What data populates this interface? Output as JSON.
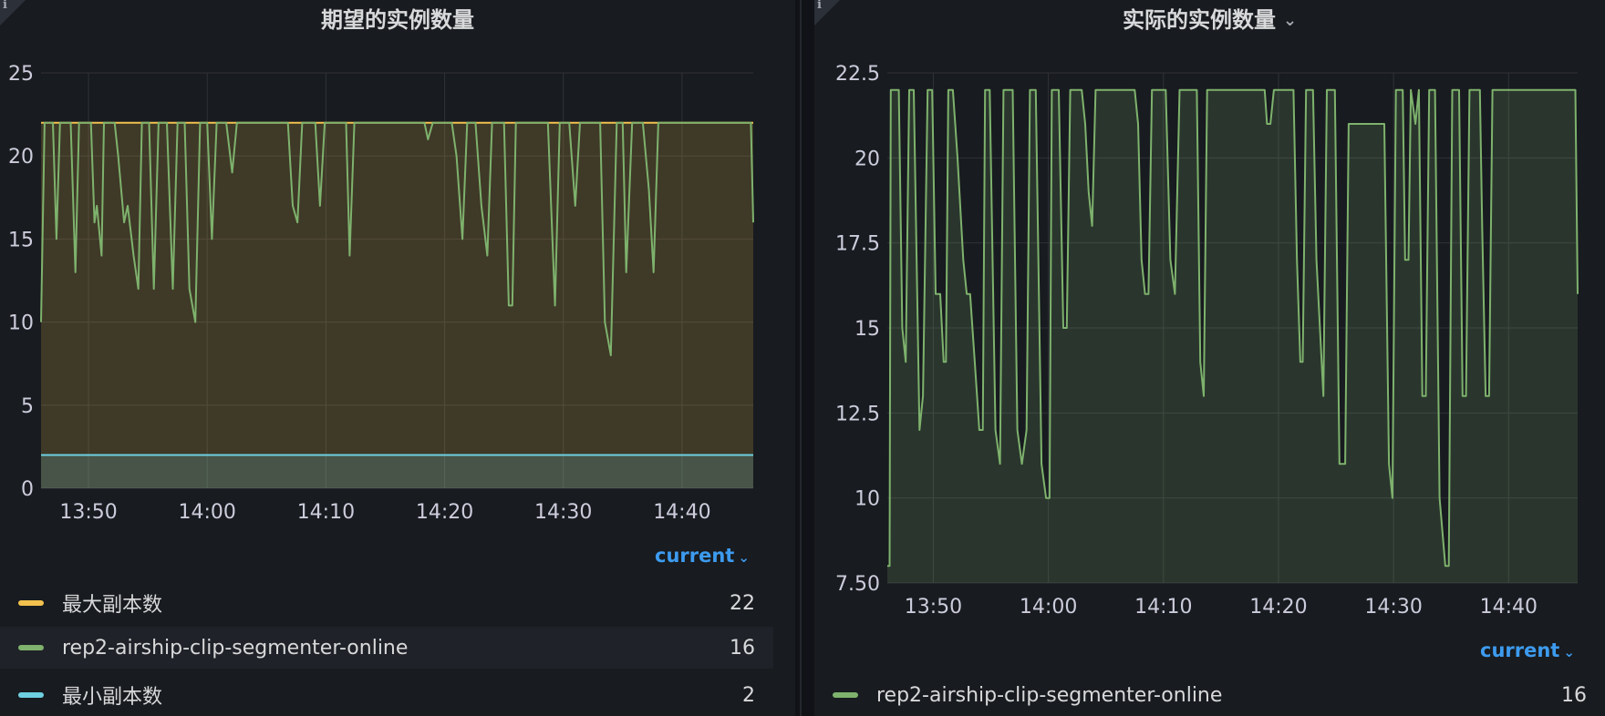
{
  "panels": [
    {
      "title": "期望的实例数量",
      "has_menu": false,
      "legend_header": "current",
      "legend": [
        {
          "name": "最大副本数",
          "value": "22",
          "color": "#f2c14e"
        },
        {
          "name": "rep2-airship-clip-segmenter-online",
          "value": "16",
          "color": "#7eb26d"
        },
        {
          "name": "最小副本数",
          "value": "2",
          "color": "#6ed0e0"
        }
      ]
    },
    {
      "title": "实际的实例数量",
      "has_menu": true,
      "legend_header": "current",
      "legend": [
        {
          "name": "rep2-airship-clip-segmenter-online",
          "value": "16",
          "color": "#7eb26d"
        }
      ]
    }
  ],
  "chart_data": [
    {
      "type": "line",
      "title": "期望的实例数量",
      "x_ticks": [
        "13:50",
        "14:00",
        "14:10",
        "14:20",
        "14:30",
        "14:40"
      ],
      "x_range": [
        "13:46",
        "14:46"
      ],
      "y_ticks": [
        "0",
        "5",
        "10",
        "15",
        "20",
        "25"
      ],
      "ylim": [
        0,
        25
      ],
      "grid": true,
      "legend_position": "bottom",
      "series": [
        {
          "name": "最大副本数",
          "color": "#f2c14e",
          "fill": true,
          "points": [
            [
              0,
              22
            ],
            [
              60,
              22
            ]
          ]
        },
        {
          "name": "最小副本数",
          "color": "#6ed0e0",
          "fill": true,
          "points": [
            [
              0,
              2
            ],
            [
              60,
              2
            ]
          ]
        },
        {
          "name": "rep2-airship-clip-segmenter-online",
          "color": "#7eb26d",
          "fill": false,
          "points": [
            [
              0,
              10
            ],
            [
              0.3,
              22
            ],
            [
              1,
              22
            ],
            [
              1.3,
              15
            ],
            [
              1.6,
              22
            ],
            [
              2.5,
              22
            ],
            [
              2.9,
              13
            ],
            [
              3.2,
              22
            ],
            [
              4.2,
              22
            ],
            [
              4.5,
              16
            ],
            [
              4.7,
              17
            ],
            [
              5.1,
              14
            ],
            [
              5.3,
              22
            ],
            [
              6.2,
              22
            ],
            [
              6.5,
              20
            ],
            [
              7,
              16
            ],
            [
              7.3,
              17
            ],
            [
              7.8,
              14
            ],
            [
              8.2,
              12
            ],
            [
              8.5,
              22
            ],
            [
              9.1,
              22
            ],
            [
              9.5,
              12
            ],
            [
              9.9,
              22
            ],
            [
              10.6,
              22
            ],
            [
              11.1,
              12
            ],
            [
              11.5,
              22
            ],
            [
              12.1,
              22
            ],
            [
              12.5,
              12
            ],
            [
              13,
              10
            ],
            [
              13.4,
              22
            ],
            [
              14,
              22
            ],
            [
              14.4,
              15
            ],
            [
              14.8,
              22
            ],
            [
              15.6,
              22
            ],
            [
              16.1,
              19
            ],
            [
              16.5,
              22
            ],
            [
              20.8,
              22
            ],
            [
              21.2,
              17
            ],
            [
              21.6,
              16
            ],
            [
              22,
              22
            ],
            [
              23.1,
              22
            ],
            [
              23.5,
              17
            ],
            [
              23.9,
              22
            ],
            [
              25.7,
              22
            ],
            [
              26,
              14
            ],
            [
              26.4,
              22
            ],
            [
              32.3,
              22
            ],
            [
              32.6,
              21
            ],
            [
              33,
              22
            ],
            [
              34.6,
              22
            ],
            [
              35,
              20
            ],
            [
              35.5,
              15
            ],
            [
              35.9,
              22
            ],
            [
              36.6,
              22
            ],
            [
              37.1,
              17
            ],
            [
              37.6,
              14
            ],
            [
              38,
              22
            ],
            [
              39,
              22
            ],
            [
              39.4,
              11
            ],
            [
              39.7,
              11
            ],
            [
              40,
              22
            ],
            [
              42.7,
              22
            ],
            [
              43.3,
              11
            ],
            [
              43.7,
              22
            ],
            [
              44.5,
              22
            ],
            [
              45,
              17
            ],
            [
              45.4,
              22
            ],
            [
              47.1,
              22
            ],
            [
              47.5,
              10
            ],
            [
              48,
              8
            ],
            [
              48.5,
              22
            ],
            [
              49,
              22
            ],
            [
              49.3,
              13
            ],
            [
              49.8,
              22
            ],
            [
              50.7,
              22
            ],
            [
              51.2,
              18
            ],
            [
              51.6,
              13
            ],
            [
              52,
              22
            ],
            [
              59.8,
              22
            ],
            [
              60,
              16
            ]
          ]
        }
      ]
    },
    {
      "type": "line",
      "title": "实际的实例数量",
      "x_ticks": [
        "13:50",
        "14:00",
        "14:10",
        "14:20",
        "14:30",
        "14:40"
      ],
      "x_range": [
        "13:46",
        "14:46"
      ],
      "y_ticks": [
        "7.50",
        "10",
        "12.5",
        "15",
        "17.5",
        "20",
        "22.5"
      ],
      "ylim": [
        7.5,
        22.5
      ],
      "grid": true,
      "legend_position": "bottom",
      "series": [
        {
          "name": "rep2-airship-clip-segmenter-online",
          "color": "#7eb26d",
          "fill": true,
          "points": [
            [
              0,
              8
            ],
            [
              0.2,
              8
            ],
            [
              0.3,
              22
            ],
            [
              1,
              22
            ],
            [
              1.3,
              15
            ],
            [
              1.6,
              14
            ],
            [
              1.9,
              22
            ],
            [
              2.3,
              22
            ],
            [
              2.8,
              12
            ],
            [
              3.1,
              13
            ],
            [
              3.5,
              22
            ],
            [
              3.9,
              22
            ],
            [
              4.2,
              16
            ],
            [
              4.6,
              16
            ],
            [
              4.9,
              14
            ],
            [
              5.1,
              14
            ],
            [
              5.3,
              22
            ],
            [
              5.7,
              22
            ],
            [
              6.1,
              20
            ],
            [
              6.6,
              17
            ],
            [
              6.9,
              16
            ],
            [
              7.2,
              16
            ],
            [
              7.6,
              14
            ],
            [
              8,
              12
            ],
            [
              8.3,
              12
            ],
            [
              8.5,
              22
            ],
            [
              8.9,
              22
            ],
            [
              9.4,
              12
            ],
            [
              9.8,
              11
            ],
            [
              10.1,
              22
            ],
            [
              10.9,
              22
            ],
            [
              11.3,
              12
            ],
            [
              11.7,
              11
            ],
            [
              12.1,
              12
            ],
            [
              12.4,
              22
            ],
            [
              12.9,
              22
            ],
            [
              13.4,
              11
            ],
            [
              13.8,
              10
            ],
            [
              14.1,
              10
            ],
            [
              14.3,
              22
            ],
            [
              14.9,
              22
            ],
            [
              15.3,
              15
            ],
            [
              15.6,
              15
            ],
            [
              15.9,
              22
            ],
            [
              16.9,
              22
            ],
            [
              17.2,
              21
            ],
            [
              17.5,
              19
            ],
            [
              17.8,
              18
            ],
            [
              18.1,
              22
            ],
            [
              21.5,
              22
            ],
            [
              21.8,
              21
            ],
            [
              22.1,
              17
            ],
            [
              22.4,
              16
            ],
            [
              22.7,
              16
            ],
            [
              23,
              22
            ],
            [
              24.2,
              22
            ],
            [
              24.6,
              17
            ],
            [
              25,
              16
            ],
            [
              25.4,
              22
            ],
            [
              26.9,
              22
            ],
            [
              27.2,
              14
            ],
            [
              27.5,
              13
            ],
            [
              27.8,
              22
            ],
            [
              32.8,
              22
            ],
            [
              33,
              21
            ],
            [
              33.3,
              21
            ],
            [
              33.6,
              22
            ],
            [
              35.3,
              22
            ],
            [
              35.6,
              17
            ],
            [
              35.9,
              14
            ],
            [
              36.1,
              14
            ],
            [
              36.4,
              22
            ],
            [
              37,
              22
            ],
            [
              37.3,
              17
            ],
            [
              37.6,
              15
            ],
            [
              37.9,
              13
            ],
            [
              38.2,
              22
            ],
            [
              38.9,
              22
            ],
            [
              39.3,
              11
            ],
            [
              39.8,
              11
            ],
            [
              40.1,
              21
            ],
            [
              43.2,
              21
            ],
            [
              43.6,
              11
            ],
            [
              43.9,
              10
            ],
            [
              44.2,
              22
            ],
            [
              44.8,
              22
            ],
            [
              45,
              17
            ],
            [
              45.3,
              17
            ],
            [
              45.5,
              22
            ],
            [
              45.9,
              21
            ],
            [
              46.2,
              22
            ],
            [
              46.5,
              13
            ],
            [
              46.8,
              13
            ],
            [
              47.1,
              22
            ],
            [
              47.6,
              22
            ],
            [
              48,
              10
            ],
            [
              48.5,
              8
            ],
            [
              48.8,
              8
            ],
            [
              49.1,
              22
            ],
            [
              49.7,
              22
            ],
            [
              50,
              13
            ],
            [
              50.3,
              13
            ],
            [
              50.6,
              22
            ],
            [
              51.1,
              22
            ],
            [
              51.5,
              22
            ],
            [
              51.7,
              18
            ],
            [
              52,
              13
            ],
            [
              52.3,
              13
            ],
            [
              52.6,
              22
            ],
            [
              59.8,
              22
            ],
            [
              60,
              16
            ]
          ]
        }
      ]
    }
  ]
}
